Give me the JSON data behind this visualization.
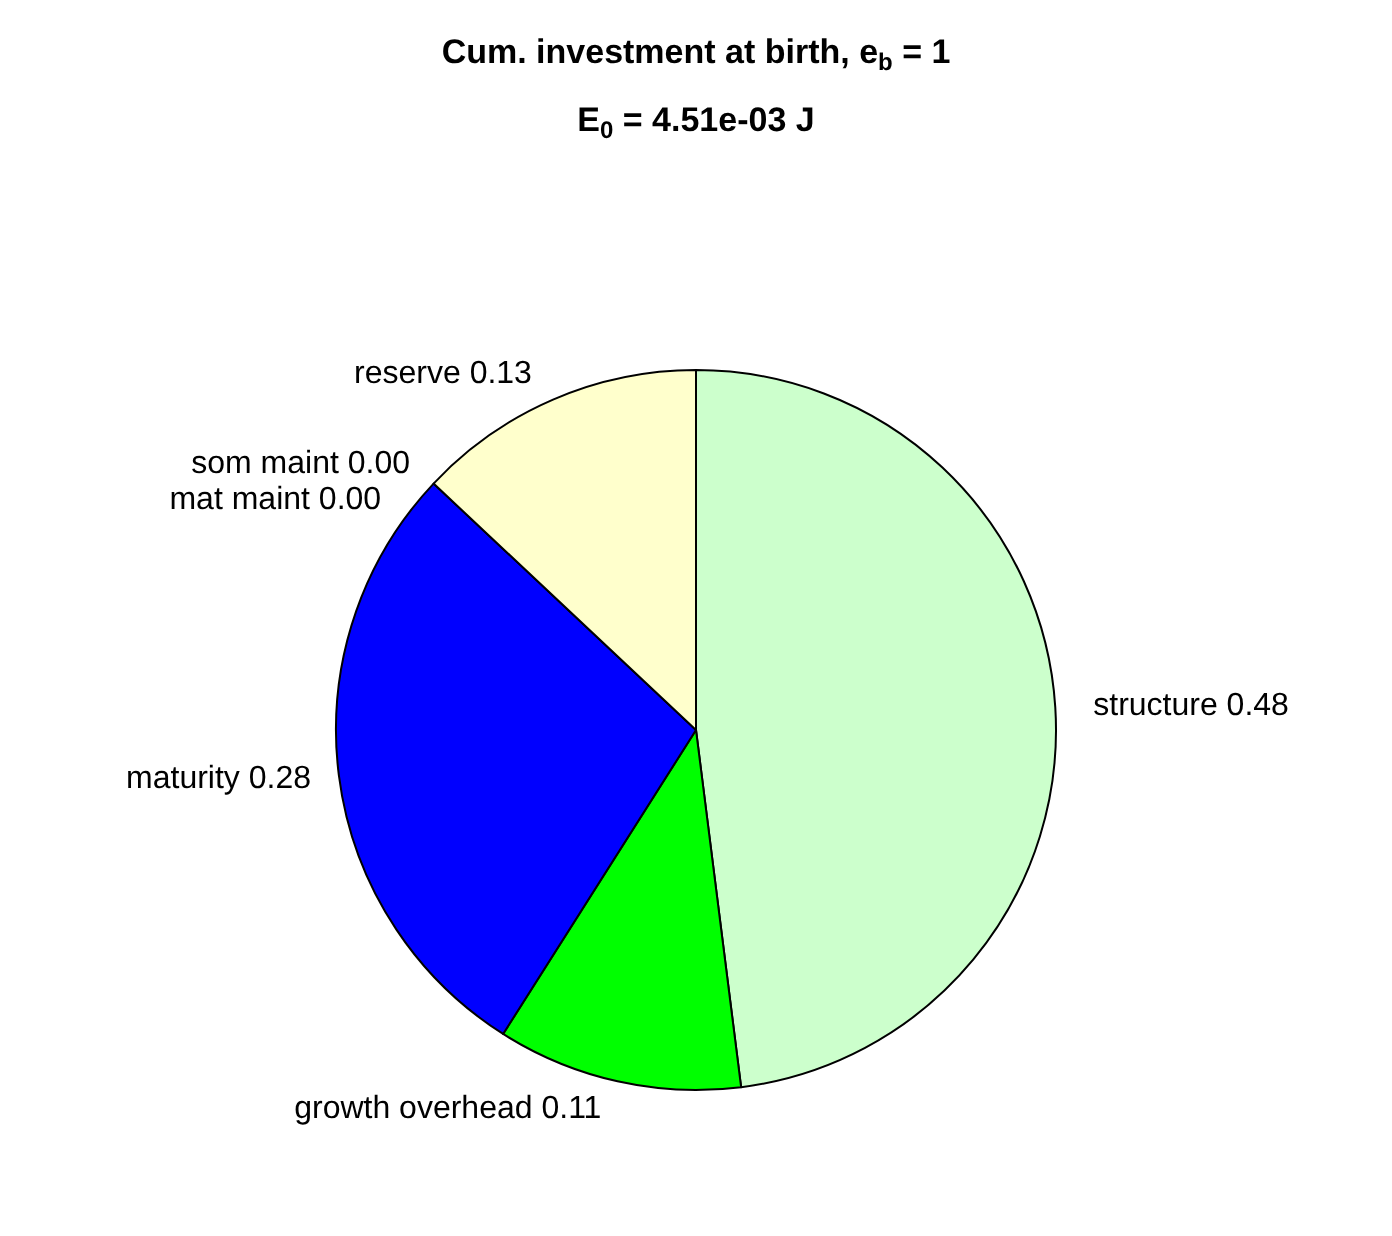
{
  "chart_data": {
    "type": "pie",
    "title": "Cum. investment at birth, e$_{b}$ = 1",
    "subtitle": "E$_{0}$ = 4.51e-03 J",
    "categories": [
      "structure",
      "growth overhead",
      "maturity",
      "som maint",
      "mat maint",
      "reserve"
    ],
    "values": [
      0.48,
      0.11,
      0.28,
      0,
      0,
      0.13
    ],
    "value_labels": [
      "0.48",
      "0.11",
      "0.28",
      "0.00",
      "0.00",
      "0.13"
    ],
    "colors": [
      "#ccffcc",
      "#00ff00",
      "#0000ff",
      "#000000",
      "#000000",
      "#ffffcc"
    ],
    "legend": false
  }
}
